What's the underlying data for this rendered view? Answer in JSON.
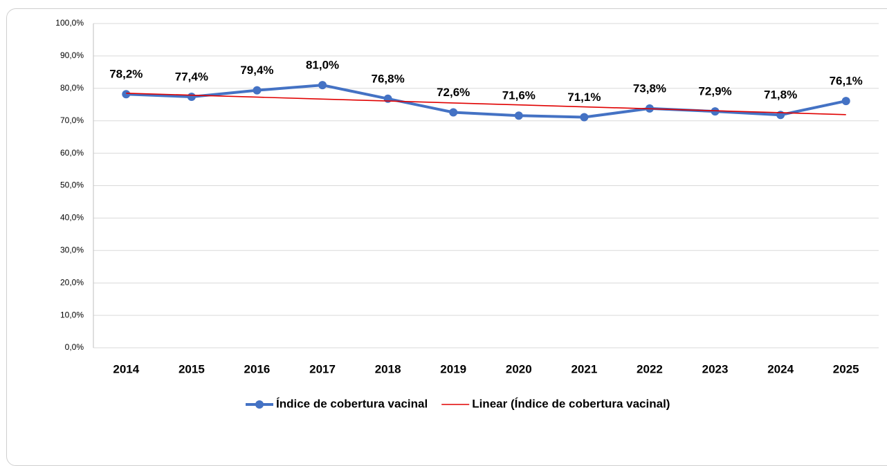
{
  "chart_data": {
    "type": "line",
    "categories": [
      "2014",
      "2015",
      "2016",
      "2017",
      "2018",
      "2019",
      "2020",
      "2021",
      "2022",
      "2023",
      "2024",
      "2025"
    ],
    "series": [
      {
        "name": "Índice de cobertura vacinal",
        "color": "#4472c4",
        "values": [
          78.2,
          77.4,
          79.4,
          81.0,
          76.8,
          72.6,
          71.6,
          71.1,
          73.8,
          72.9,
          71.8,
          76.1
        ],
        "value_labels": [
          "78,2%",
          "77,4%",
          "79,4%",
          "81,0%",
          "76,8%",
          "72,6%",
          "71,6%",
          "71,1%",
          "73,8%",
          "72,9%",
          "71,8%",
          "76,1%"
        ]
      },
      {
        "name": "Linear (Índice de cobertura vacinal)",
        "color": "#e00000",
        "values": [
          78.5,
          77.9,
          77.3,
          76.7,
          76.1,
          75.5,
          74.9,
          74.3,
          73.7,
          73.1,
          72.5,
          71.9
        ]
      }
    ],
    "ylim": [
      0,
      100
    ],
    "yticks": [
      {
        "value": 0,
        "label": "0,0%"
      },
      {
        "value": 10,
        "label": "10,0%"
      },
      {
        "value": 20,
        "label": "20,0%"
      },
      {
        "value": 30,
        "label": "30,0%"
      },
      {
        "value": 40,
        "label": "40,0%"
      },
      {
        "value": 50,
        "label": "50,0%"
      },
      {
        "value": 60,
        "label": "60,0%"
      },
      {
        "value": 70,
        "label": "70,0%"
      },
      {
        "value": 80,
        "label": "80,0%"
      },
      {
        "value": 90,
        "label": "90,0%"
      },
      {
        "value": 100,
        "label": "100,0%"
      }
    ],
    "grid": true,
    "legend": "bottom"
  }
}
